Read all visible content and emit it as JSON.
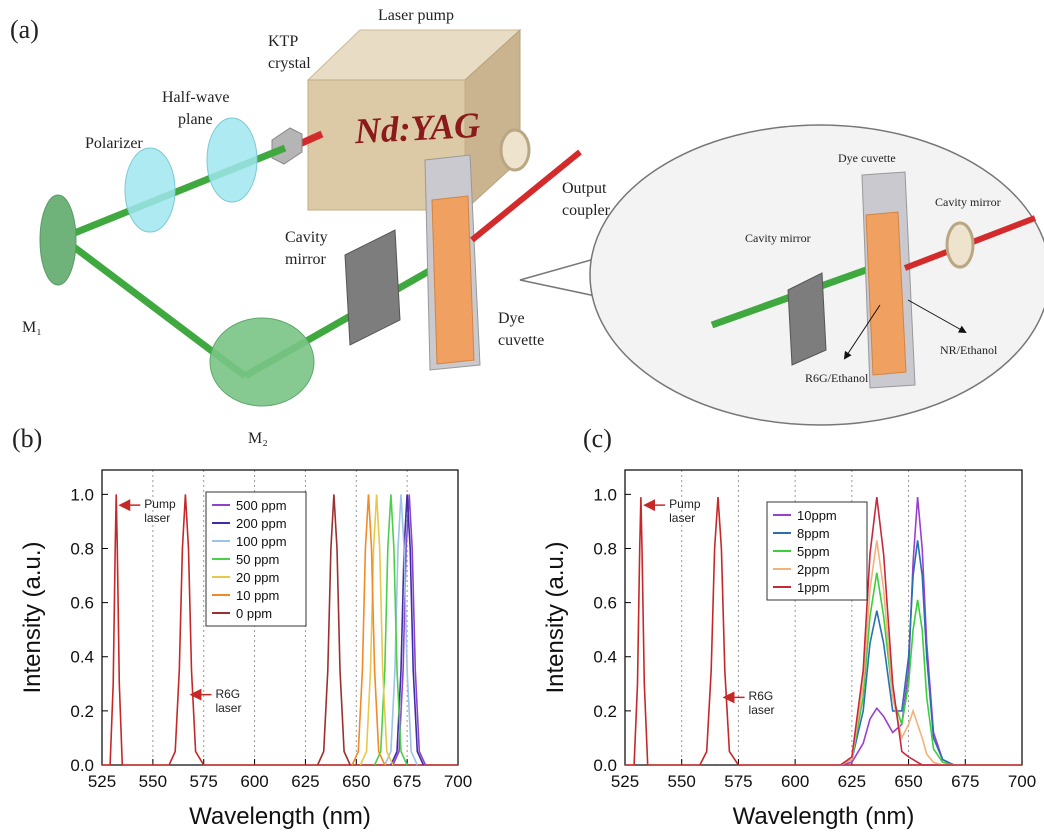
{
  "diagram": {
    "panel": "(a)",
    "laser_pump": "Laser pump",
    "laser_medium": "Nd:YAG",
    "ktp": [
      "KTP",
      "crystal"
    ],
    "half_wave": [
      "Half-wave",
      "plane"
    ],
    "polarizer": "Polarizer",
    "m1": "M₁",
    "m2": "M₂",
    "cavity_mirror": [
      "Cavity",
      "mirror"
    ],
    "output_coupler": [
      "Output",
      "coupler"
    ],
    "dye_cuvette": [
      "Dye",
      "cuvette"
    ],
    "inset": {
      "dye_cuvette": "Dye cuvette",
      "cavity_mirror_left": "Cavity mirror",
      "cavity_mirror_right": "Cavity mirror",
      "r6g": "R6G/Ethanol",
      "nr": "NR/Ethanol"
    }
  },
  "chart_data": [
    {
      "type": "line",
      "panel": "(b)",
      "x_label": "Wavelength (nm)",
      "y_label": "Intensity (a.u.)",
      "xlim": [
        525,
        700
      ],
      "ylim": [
        0,
        1.09
      ],
      "xticks": [
        525,
        550,
        575,
        600,
        625,
        650,
        675,
        700
      ],
      "yticks": [
        {
          "value": 0,
          "label": "0.0"
        },
        0.2,
        0.4,
        0.6,
        0.8,
        {
          "value": 1,
          "label": "1.0"
        }
      ],
      "grid": true,
      "annotations": [
        {
          "text": "Pump laser",
          "x": 533,
          "y": 0.96
        },
        {
          "text": "R6G laser",
          "x": 568,
          "y": 0.26
        }
      ],
      "series": [
        {
          "color": "#c62828",
          "x": [
            525,
            529,
            530.5,
            531.5,
            532,
            532.5,
            533.5,
            535,
            540,
            558,
            561,
            563,
            564.5,
            566,
            567.5,
            569,
            571,
            575,
            700
          ],
          "values": [
            0,
            0,
            0.3,
            0.8,
            1.0,
            0.8,
            0.3,
            0,
            0,
            0,
            0.05,
            0.35,
            0.8,
            1.0,
            0.8,
            0.35,
            0.05,
            0,
            0
          ]
        },
        {
          "name": "500 ppm",
          "color": "#8e44c9",
          "x": [
            668,
            671,
            673,
            674.5,
            676,
            677.5,
            679,
            681,
            684
          ],
          "values": [
            0,
            0.05,
            0.35,
            0.8,
            1.0,
            0.8,
            0.35,
            0.05,
            0
          ]
        },
        {
          "name": "200 ppm",
          "color": "#3b2fa8",
          "x": [
            667,
            670,
            672,
            673.5,
            675,
            676.5,
            678,
            680,
            683
          ],
          "values": [
            0,
            0.05,
            0.35,
            0.8,
            1.0,
            0.8,
            0.35,
            0.05,
            0
          ]
        },
        {
          "name": "100 ppm",
          "color": "#9ec3e8",
          "x": [
            664,
            667,
            669,
            670.5,
            672,
            673.5,
            675,
            677,
            680
          ],
          "values": [
            0,
            0.05,
            0.35,
            0.8,
            1.0,
            0.8,
            0.35,
            0.05,
            0
          ]
        },
        {
          "name": "50 ppm",
          "color": "#4bd04b",
          "x": [
            659,
            662,
            664,
            665.5,
            667,
            668.5,
            670,
            672,
            675
          ],
          "values": [
            0,
            0.05,
            0.35,
            0.8,
            1.0,
            0.8,
            0.35,
            0.05,
            0
          ]
        },
        {
          "name": "20 ppm",
          "color": "#e8c84a",
          "x": [
            652,
            655,
            657,
            658.5,
            660,
            661.5,
            663,
            665,
            668
          ],
          "values": [
            0,
            0.05,
            0.35,
            0.8,
            1.0,
            0.8,
            0.35,
            0.05,
            0
          ]
        },
        {
          "name": "10 ppm",
          "color": "#f08a2a",
          "x": [
            648,
            651,
            653,
            654.5,
            656,
            657.5,
            659,
            661,
            664
          ],
          "values": [
            0,
            0.05,
            0.35,
            0.8,
            1.0,
            0.8,
            0.35,
            0.05,
            0
          ]
        },
        {
          "name": "0 ppm",
          "color": "#9b3030",
          "x": [
            631,
            634,
            636,
            637.5,
            639,
            640.5,
            642,
            644,
            647
          ],
          "values": [
            0,
            0.05,
            0.35,
            0.8,
            1.0,
            0.8,
            0.35,
            0.05,
            0
          ]
        }
      ]
    },
    {
      "type": "line",
      "panel": "(c)",
      "x_label": "Wavelength (nm)",
      "y_label": "Intensity (a.u.)",
      "xlim": [
        525,
        700
      ],
      "ylim": [
        0,
        1.09
      ],
      "xticks": [
        525,
        550,
        575,
        600,
        625,
        650,
        675,
        700
      ],
      "yticks": [
        {
          "value": 0,
          "label": "0.0"
        },
        0.2,
        0.4,
        0.6,
        0.8,
        {
          "value": 1,
          "label": "1.0"
        }
      ],
      "grid": true,
      "annotations": [
        {
          "text": "Pump laser",
          "x": 533,
          "y": 0.96
        },
        {
          "text": "R6G laser",
          "x": 568,
          "y": 0.25
        }
      ],
      "x": [
        620,
        625,
        630,
        633,
        636,
        639,
        643,
        647,
        650,
        652,
        654,
        656,
        658,
        661,
        665,
        670
      ],
      "series": [
        {
          "color": "#c62828",
          "x": [
            525,
            529,
            530.5,
            531.5,
            532,
            532.5,
            533.5,
            535,
            540,
            558,
            561,
            563,
            564.5,
            566,
            567.5,
            569,
            571,
            575,
            700
          ],
          "values": [
            0,
            0,
            0.3,
            0.8,
            0.99,
            0.8,
            0.3,
            0,
            0,
            0,
            0.05,
            0.35,
            0.8,
            0.99,
            0.8,
            0.35,
            0.05,
            0,
            0
          ]
        },
        {
          "name": "10ppm",
          "color": "#9b3fd0",
          "values": [
            0,
            0.01,
            0.08,
            0.17,
            0.21,
            0.18,
            0.12,
            0.15,
            0.35,
            0.75,
            0.99,
            0.8,
            0.45,
            0.12,
            0.02,
            0
          ]
        },
        {
          "name": "8ppm",
          "color": "#2a6fb0",
          "values": [
            0,
            0.02,
            0.2,
            0.45,
            0.57,
            0.45,
            0.2,
            0.2,
            0.4,
            0.7,
            0.83,
            0.7,
            0.4,
            0.1,
            0.02,
            0
          ]
        },
        {
          "name": "5ppm",
          "color": "#3ccf3c",
          "values": [
            0,
            0.02,
            0.25,
            0.55,
            0.71,
            0.55,
            0.25,
            0.15,
            0.3,
            0.5,
            0.61,
            0.5,
            0.25,
            0.06,
            0.01,
            0
          ]
        },
        {
          "name": "2ppm",
          "color": "#f2b27a",
          "values": [
            0,
            0.02,
            0.3,
            0.65,
            0.83,
            0.65,
            0.25,
            0.1,
            0.15,
            0.2,
            0.15,
            0.1,
            0.04,
            0.01,
            0,
            0
          ]
        },
        {
          "name": "1ppm",
          "color": "#c8283c",
          "values": [
            0,
            0.03,
            0.35,
            0.78,
            0.99,
            0.78,
            0.3,
            0.05,
            0.03,
            0.02,
            0.01,
            0,
            0,
            0,
            0,
            0
          ]
        }
      ]
    }
  ]
}
